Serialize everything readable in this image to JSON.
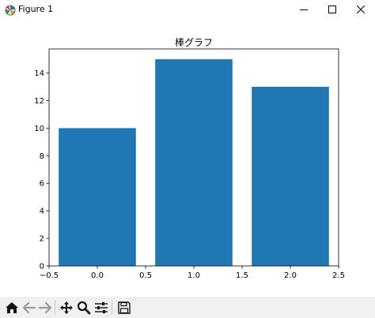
{
  "window": {
    "title": "Figure 1",
    "icons": {
      "app": "matplotlib-icon",
      "minimize": "minimize-icon",
      "maximize": "maximize-icon",
      "close": "close-icon"
    }
  },
  "chart_data": {
    "type": "bar",
    "title": "棒グラフ",
    "x": [
      0,
      1,
      2
    ],
    "values": [
      10,
      15,
      13
    ],
    "bar_width": 0.8,
    "xlabel": "",
    "ylabel": "",
    "xlim": [
      -0.5,
      2.5
    ],
    "ylim": [
      0,
      15.75
    ],
    "xticks": [
      "−0.5",
      "0.0",
      "0.5",
      "1.0",
      "1.5",
      "2.0",
      "2.5"
    ],
    "yticks": [
      "0",
      "2",
      "4",
      "6",
      "8",
      "10",
      "12",
      "14"
    ],
    "bar_color": "#1f77b4",
    "grid": false
  },
  "toolbar": {
    "tools": [
      {
        "name": "home-button",
        "icon": "home-icon"
      },
      {
        "name": "back-button",
        "icon": "arrow-left-icon"
      },
      {
        "name": "forward-button",
        "icon": "arrow-right-icon"
      },
      {
        "name": "pan-button",
        "icon": "move-icon"
      },
      {
        "name": "zoom-button",
        "icon": "magnifier-icon"
      },
      {
        "name": "configure-subplots-button",
        "icon": "sliders-icon"
      },
      {
        "name": "save-button",
        "icon": "floppy-disk-icon"
      }
    ]
  }
}
